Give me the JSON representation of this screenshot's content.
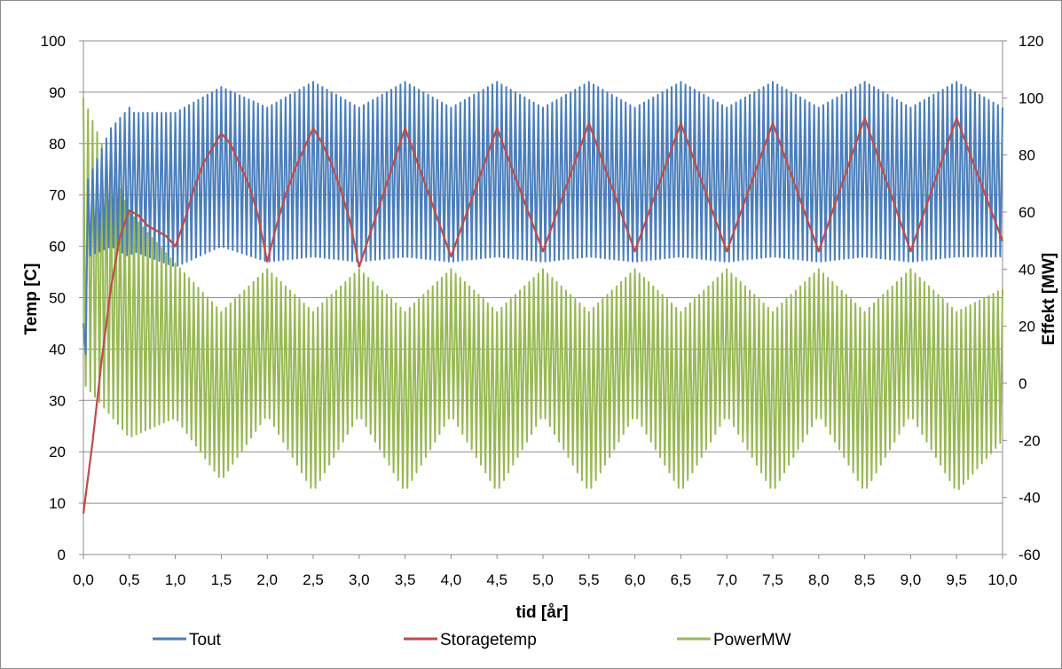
{
  "chart_data": {
    "type": "line",
    "xlabel": "tid [år]",
    "ylabel": "Temp [C]",
    "y2label": "Effekt [MW]",
    "xlim": [
      0,
      10
    ],
    "ylim": [
      0,
      100
    ],
    "y2lim": [
      -60,
      120
    ],
    "x_ticks": [
      "0,0",
      "0,5",
      "1,0",
      "1,5",
      "2,0",
      "2,5",
      "3,0",
      "3,5",
      "4,0",
      "4,5",
      "5,0",
      "5,5",
      "6,0",
      "6,5",
      "7,0",
      "7,5",
      "8,0",
      "8,5",
      "9,0",
      "9,5",
      "10,0"
    ],
    "y_ticks": [
      "0",
      "10",
      "20",
      "30",
      "40",
      "50",
      "60",
      "70",
      "80",
      "90",
      "100"
    ],
    "y2_ticks": [
      "-60",
      "-40",
      "-20",
      "0",
      "20",
      "40",
      "60",
      "80",
      "100",
      "120"
    ],
    "grid": "horizontal",
    "legend_position": "bottom",
    "series": [
      {
        "name": "Tout",
        "axis": "left",
        "color": "#4A7EBB",
        "envelope": {
          "x": [
            0.0,
            0.05,
            0.3,
            0.5,
            0.55,
            1.0,
            1.5,
            2.0,
            2.5,
            3.0,
            3.5,
            4.0,
            4.5,
            5.0,
            5.5,
            6.0,
            6.5,
            7.0,
            7.5,
            8.0,
            8.5,
            9.0,
            9.5,
            10.0
          ],
          "peak": [
            45,
            73,
            83,
            87,
            86,
            86,
            91,
            87,
            92,
            87,
            92,
            87,
            92,
            87,
            92,
            87,
            92,
            87,
            92,
            87,
            92,
            87,
            92,
            87
          ],
          "trough": [
            20,
            58,
            60,
            58,
            59,
            56,
            60,
            57,
            58,
            57,
            58,
            57,
            58,
            57,
            58,
            57,
            58,
            57,
            58,
            57,
            58,
            57,
            58,
            58
          ]
        }
      },
      {
        "name": "Storagetemp",
        "axis": "left",
        "color": "#BE4B48",
        "x": [
          0.0,
          0.1,
          0.2,
          0.3,
          0.4,
          0.5,
          0.6,
          0.7,
          0.8,
          0.9,
          1.0,
          1.1,
          1.2,
          1.3,
          1.4,
          1.5,
          1.6,
          1.7,
          1.8,
          1.9,
          2.0,
          2.1,
          2.2,
          2.3,
          2.4,
          2.5,
          2.6,
          2.7,
          2.8,
          2.9,
          3.0,
          3.5,
          4.0,
          4.5,
          5.0,
          5.5,
          6.0,
          6.5,
          7.0,
          7.5,
          8.0,
          8.5,
          9.0,
          9.5,
          10.0
        ],
        "values": [
          8,
          22,
          38,
          52,
          62,
          67,
          66,
          64,
          63,
          62,
          60,
          65,
          71,
          76,
          79,
          82,
          80,
          76,
          72,
          66,
          57,
          64,
          70,
          75,
          79,
          83,
          80,
          76,
          71,
          65,
          56,
          83,
          58,
          83,
          59,
          84,
          59,
          84,
          59,
          84,
          59,
          85,
          59,
          85,
          61
        ]
      },
      {
        "name": "PowerMW",
        "axis": "right",
        "color": "#98B954",
        "envelope": {
          "x": [
            0.0,
            0.5,
            1.0,
            1.5,
            2.0,
            2.5,
            3.0,
            3.5,
            4.0,
            4.5,
            5.0,
            5.5,
            6.0,
            6.5,
            7.0,
            7.5,
            8.0,
            8.5,
            9.0,
            9.5,
            10.0
          ],
          "peak": [
            100,
            60,
            42,
            25,
            40,
            25,
            40,
            25,
            40,
            25,
            40,
            25,
            40,
            25,
            40,
            25,
            40,
            25,
            40,
            25,
            33
          ],
          "trough": [
            0,
            -19,
            -12,
            -34,
            -11,
            -38,
            -11,
            -38,
            -11,
            -38,
            -11,
            -38,
            -11,
            -38,
            -11,
            -38,
            -11,
            -38,
            -11,
            -38,
            -20
          ]
        }
      }
    ]
  }
}
